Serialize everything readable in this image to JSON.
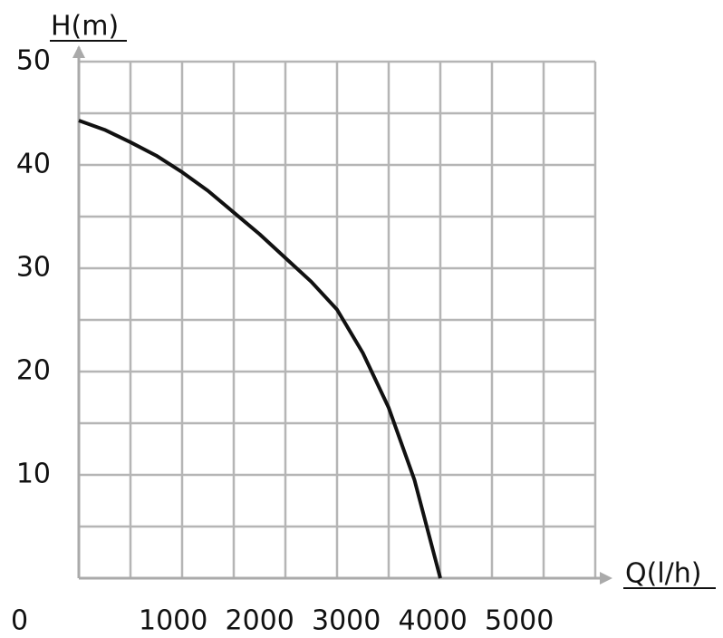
{
  "chart_data": {
    "type": "line",
    "x_label": "Q(l/h)",
    "y_label": "H(m)",
    "x": [
      0,
      250,
      500,
      750,
      1000,
      1250,
      1500,
      1750,
      2000,
      2250,
      2500,
      2750,
      3000,
      3250,
      3500
    ],
    "series": [
      {
        "name": "H",
        "color": "#111111",
        "values": [
          44.3,
          43.4,
          42.2,
          40.9,
          39.3,
          37.5,
          35.4,
          33.3,
          31.0,
          28.7,
          26.0,
          21.8,
          16.5,
          9.5,
          0
        ]
      }
    ],
    "xlim": [
      0,
      5000
    ],
    "ylim": [
      0,
      50
    ],
    "xticks": [
      0,
      1000,
      2000,
      3000,
      4000,
      5000
    ],
    "yticks": [
      10,
      20,
      30,
      40,
      50
    ],
    "x_grid": [
      500,
      1000,
      1500,
      2000,
      2500,
      3000,
      3500,
      4000,
      4500,
      5000
    ],
    "y_grid": [
      5,
      10,
      15,
      20,
      25,
      30,
      35,
      40,
      45,
      50
    ],
    "grid": true
  }
}
